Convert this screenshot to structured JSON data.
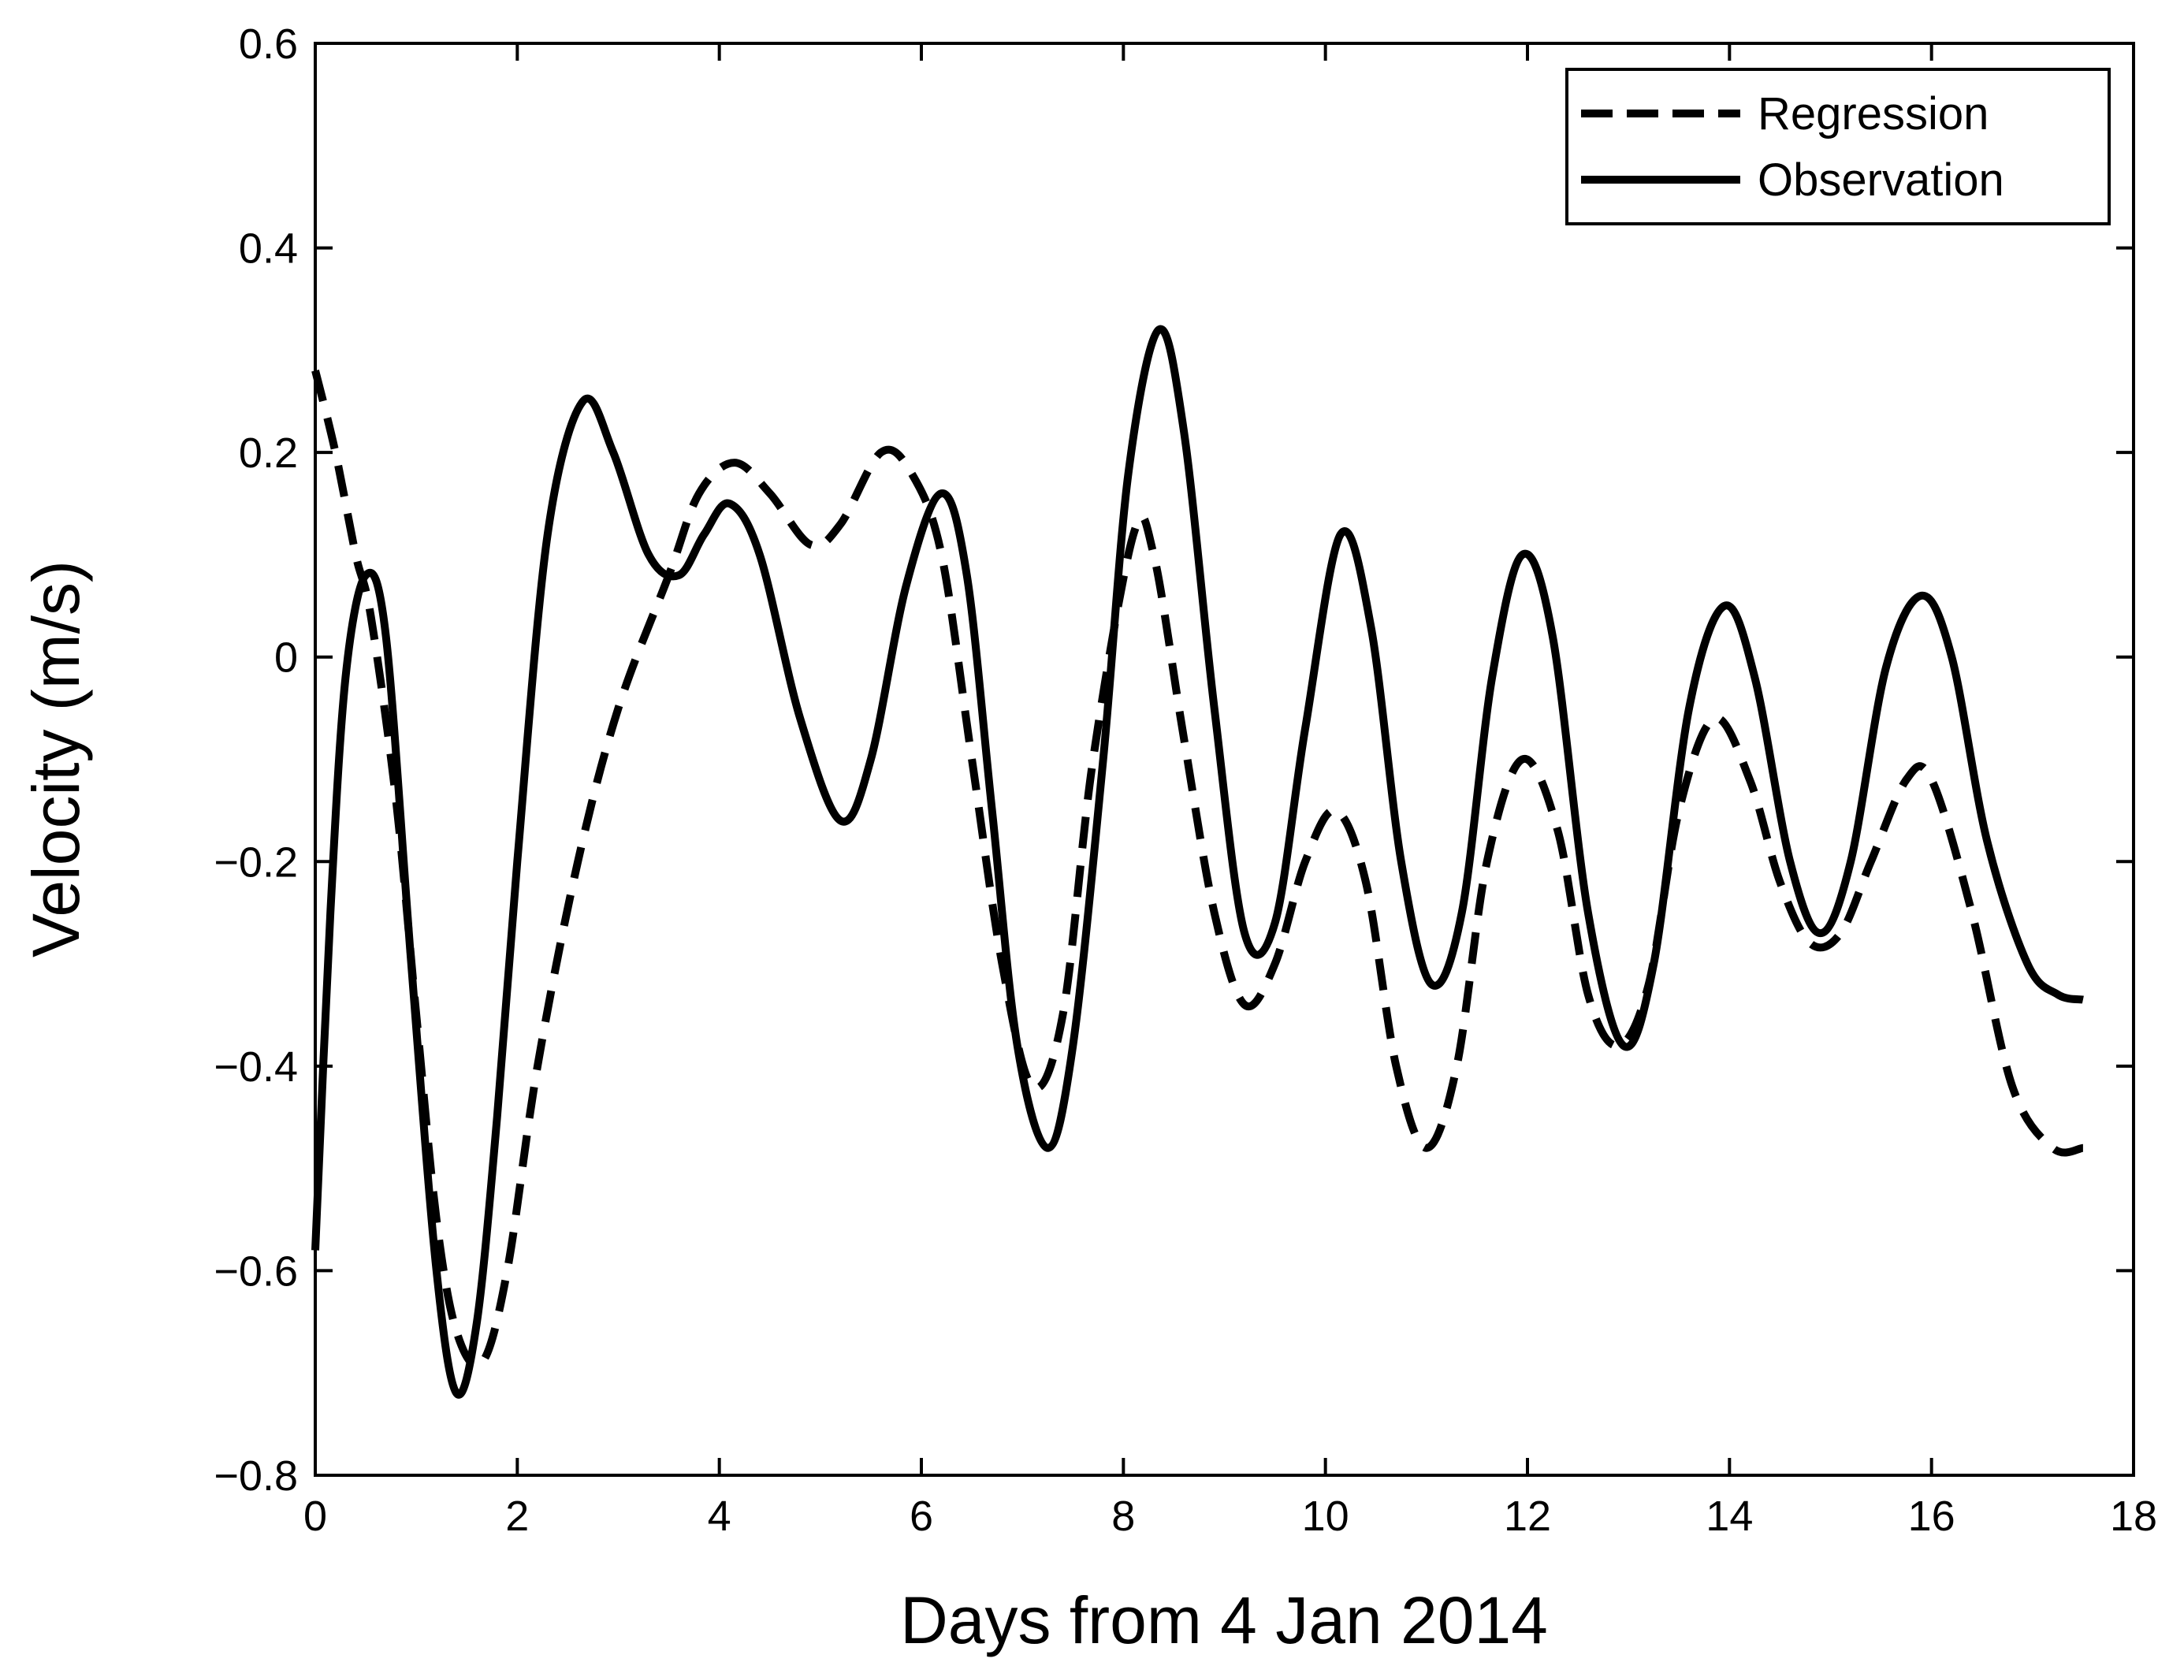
{
  "chart_data": {
    "type": "line",
    "title": "",
    "xlabel": "Days from 4 Jan 2014",
    "ylabel": "Velocity (m/s)",
    "xlim": [
      0,
      18
    ],
    "ylim": [
      -0.8,
      0.6
    ],
    "x_ticks": [
      0,
      2,
      4,
      6,
      8,
      10,
      12,
      14,
      16,
      18
    ],
    "x_tick_labels": [
      "0",
      "2",
      "4",
      "6",
      "8",
      "10",
      "12",
      "14",
      "16",
      "18"
    ],
    "y_ticks": [
      0.6,
      0.4,
      0.2,
      0,
      -0.2,
      -0.4,
      -0.6,
      -0.8
    ],
    "y_tick_labels": [
      "0.6",
      "0.4",
      "0.2",
      "0",
      "−0.2",
      "−0.4",
      "−0.6",
      "−0.8"
    ],
    "grid": false,
    "legend_position": "top-right",
    "series": [
      {
        "name": "Regression",
        "style": "dashed",
        "color": "#000000",
        "points": [
          [
            0,
            0.28
          ],
          [
            0.2,
            0.2
          ],
          [
            0.4,
            0.1
          ],
          [
            0.55,
            0.04
          ],
          [
            0.8,
            -0.14
          ],
          [
            1.0,
            -0.35
          ],
          [
            1.2,
            -0.55
          ],
          [
            1.4,
            -0.66
          ],
          [
            1.65,
            -0.69
          ],
          [
            1.9,
            -0.6
          ],
          [
            2.2,
            -0.4
          ],
          [
            2.6,
            -0.2
          ],
          [
            3.0,
            -0.05
          ],
          [
            3.5,
            0.08
          ],
          [
            3.8,
            0.16
          ],
          [
            4.15,
            0.19
          ],
          [
            4.5,
            0.16
          ],
          [
            4.9,
            0.11
          ],
          [
            5.2,
            0.13
          ],
          [
            5.6,
            0.2
          ],
          [
            5.9,
            0.18
          ],
          [
            6.2,
            0.1
          ],
          [
            6.5,
            -0.1
          ],
          [
            6.8,
            -0.3
          ],
          [
            7.1,
            -0.42
          ],
          [
            7.4,
            -0.35
          ],
          [
            7.7,
            -0.1
          ],
          [
            8.1,
            0.12
          ],
          [
            8.3,
            0.1
          ],
          [
            8.6,
            -0.08
          ],
          [
            8.9,
            -0.25
          ],
          [
            9.2,
            -0.34
          ],
          [
            9.5,
            -0.3
          ],
          [
            9.8,
            -0.2
          ],
          [
            10.1,
            -0.15
          ],
          [
            10.4,
            -0.22
          ],
          [
            10.7,
            -0.4
          ],
          [
            11.0,
            -0.48
          ],
          [
            11.3,
            -0.4
          ],
          [
            11.6,
            -0.2
          ],
          [
            11.95,
            -0.1
          ],
          [
            12.3,
            -0.17
          ],
          [
            12.6,
            -0.33
          ],
          [
            12.9,
            -0.38
          ],
          [
            13.2,
            -0.32
          ],
          [
            13.5,
            -0.15
          ],
          [
            13.85,
            -0.06
          ],
          [
            14.2,
            -0.12
          ],
          [
            14.5,
            -0.22
          ],
          [
            14.8,
            -0.28
          ],
          [
            15.1,
            -0.27
          ],
          [
            15.4,
            -0.2
          ],
          [
            15.75,
            -0.12
          ],
          [
            16.0,
            -0.12
          ],
          [
            16.4,
            -0.25
          ],
          [
            16.8,
            -0.42
          ],
          [
            17.2,
            -0.48
          ],
          [
            17.5,
            -0.48
          ]
        ]
      },
      {
        "name": "Observation",
        "style": "solid",
        "color": "#000000",
        "points": [
          [
            0,
            -0.58
          ],
          [
            0.15,
            -0.25
          ],
          [
            0.3,
            -0.02
          ],
          [
            0.5,
            0.08
          ],
          [
            0.7,
            0.02
          ],
          [
            0.95,
            -0.3
          ],
          [
            1.2,
            -0.6
          ],
          [
            1.4,
            -0.72
          ],
          [
            1.6,
            -0.65
          ],
          [
            1.8,
            -0.45
          ],
          [
            2.0,
            -0.2
          ],
          [
            2.3,
            0.12
          ],
          [
            2.65,
            0.25
          ],
          [
            2.95,
            0.2
          ],
          [
            3.3,
            0.1
          ],
          [
            3.6,
            0.08
          ],
          [
            3.85,
            0.12
          ],
          [
            4.1,
            0.15
          ],
          [
            4.4,
            0.1
          ],
          [
            4.8,
            -0.06
          ],
          [
            5.2,
            -0.16
          ],
          [
            5.5,
            -0.1
          ],
          [
            5.85,
            0.07
          ],
          [
            6.2,
            0.16
          ],
          [
            6.45,
            0.08
          ],
          [
            6.7,
            -0.15
          ],
          [
            6.95,
            -0.38
          ],
          [
            7.25,
            -0.48
          ],
          [
            7.5,
            -0.38
          ],
          [
            7.8,
            -0.1
          ],
          [
            8.05,
            0.18
          ],
          [
            8.35,
            0.32
          ],
          [
            8.6,
            0.22
          ],
          [
            8.9,
            -0.05
          ],
          [
            9.2,
            -0.27
          ],
          [
            9.5,
            -0.26
          ],
          [
            9.8,
            -0.07
          ],
          [
            10.15,
            0.12
          ],
          [
            10.45,
            0.03
          ],
          [
            10.75,
            -0.2
          ],
          [
            11.05,
            -0.32
          ],
          [
            11.35,
            -0.25
          ],
          [
            11.65,
            -0.02
          ],
          [
            11.95,
            0.1
          ],
          [
            12.25,
            0.02
          ],
          [
            12.6,
            -0.25
          ],
          [
            12.95,
            -0.38
          ],
          [
            13.25,
            -0.3
          ],
          [
            13.6,
            -0.05
          ],
          [
            13.95,
            0.05
          ],
          [
            14.25,
            -0.02
          ],
          [
            14.6,
            -0.2
          ],
          [
            14.9,
            -0.27
          ],
          [
            15.2,
            -0.2
          ],
          [
            15.55,
            -0.01
          ],
          [
            15.9,
            0.06
          ],
          [
            16.2,
            0.0
          ],
          [
            16.55,
            -0.18
          ],
          [
            16.95,
            -0.3
          ],
          [
            17.25,
            -0.33
          ],
          [
            17.5,
            -0.335
          ]
        ]
      }
    ]
  }
}
